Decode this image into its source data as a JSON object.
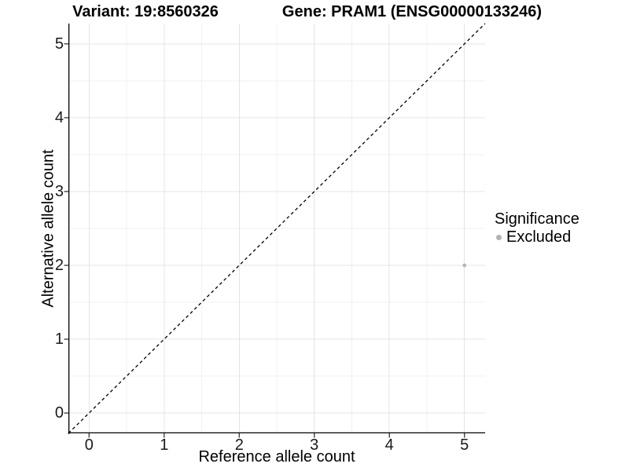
{
  "chart_data": {
    "type": "scatter",
    "title_left": "Variant: 19:8560326",
    "title_right": "Gene: PRAM1 (ENSG00000133246)",
    "xlabel": "Reference allele count",
    "ylabel": "Alternative allele count",
    "xlim": [
      -0.275,
      5.275
    ],
    "ylim": [
      -0.275,
      5.275
    ],
    "xticks": [
      0,
      1,
      2,
      3,
      4,
      5
    ],
    "yticks": [
      0,
      1,
      2,
      3,
      4,
      5
    ],
    "minor_gridlines": [
      0.5,
      1.5,
      2.5,
      3.5,
      4.5
    ],
    "grid": true,
    "points": [
      {
        "x": 5,
        "y": 2,
        "series": "Excluded"
      }
    ],
    "reference_line": {
      "description": "identity line y = x",
      "style": "dashed",
      "from": [
        -0.275,
        -0.275
      ],
      "to": [
        5.275,
        5.275
      ],
      "color": "#000000"
    },
    "legend": {
      "title": "Significance",
      "position": "right",
      "items": [
        {
          "label": "Excluded",
          "color": "#b3b3b3"
        }
      ]
    },
    "colors": {
      "excluded_point": "#b3b3b3",
      "grid_major": "#e4e4e4",
      "grid_minor": "#f2f2f2",
      "axis_line": "#000000",
      "tick_mark": "#333333"
    }
  }
}
